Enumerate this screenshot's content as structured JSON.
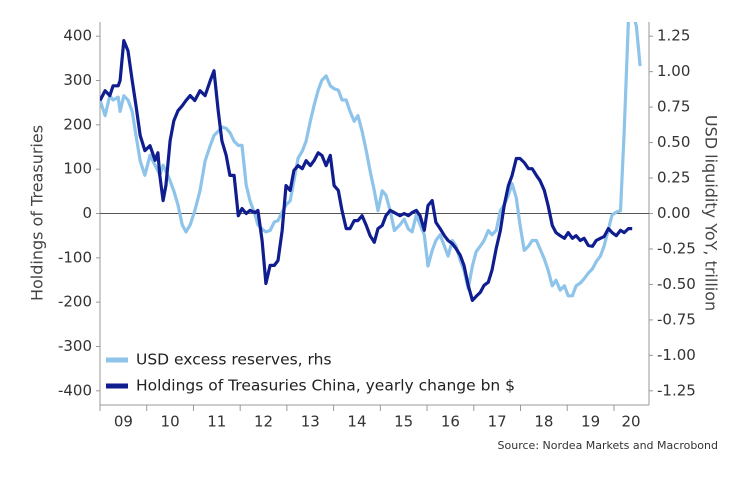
{
  "chart_data": {
    "type": "line",
    "source": "Source: Nordea Markets and Macrobond",
    "y_label": "Holdings of Treasuries",
    "y2_label": "USD liquidity YoY, trillion",
    "x": [
      9.0,
      9.11,
      9.21,
      9.28,
      9.39,
      9.43,
      9.51,
      9.6,
      9.69,
      9.77,
      9.86,
      9.96,
      10.07,
      10.18,
      10.24,
      10.28,
      10.35,
      10.41,
      10.5,
      10.58,
      10.67,
      10.76,
      10.84,
      10.93,
      11.03,
      11.14,
      11.25,
      11.36,
      11.44,
      11.53,
      11.61,
      11.7,
      11.78,
      11.87,
      11.96,
      12.04,
      12.13,
      12.21,
      12.32,
      12.38,
      12.47,
      12.55,
      12.64,
      12.73,
      12.81,
      12.9,
      12.98,
      13.07,
      13.15,
      13.24,
      13.33,
      13.41,
      13.5,
      13.58,
      13.67,
      13.75,
      13.84,
      13.93,
      14.01,
      14.1,
      14.18,
      14.27,
      14.35,
      14.44,
      14.52,
      14.61,
      14.7,
      14.78,
      14.87,
      14.95,
      15.04,
      15.12,
      15.21,
      15.3,
      15.42,
      15.51,
      15.6,
      15.68,
      15.77,
      15.85,
      15.94,
      16.02,
      16.11,
      16.19,
      16.28,
      16.37,
      16.45,
      16.54,
      16.62,
      16.71,
      16.79,
      16.88,
      16.97,
      17.05,
      17.14,
      17.22,
      17.31,
      17.39,
      17.48,
      17.57,
      17.65,
      17.74,
      17.82,
      17.91,
      17.99,
      18.08,
      18.17,
      18.25,
      18.34,
      18.42,
      18.51,
      18.59,
      18.68,
      18.76,
      18.85,
      18.94,
      19.02,
      19.11,
      19.19,
      19.28,
      19.36,
      19.45,
      19.54,
      19.62,
      19.71,
      19.79,
      19.88,
      19.96,
      20.05,
      20.14,
      20.22,
      20.31,
      20.39,
      20.48,
      20.56
    ],
    "series": [
      {
        "name": "USD excess reserves, rhs",
        "color": "#8ec3ea",
        "axis": "y2",
        "values": [
          0.8,
          0.69,
          0.83,
          0.8,
          0.82,
          0.72,
          0.83,
          0.8,
          0.72,
          0.55,
          0.37,
          0.27,
          0.41,
          0.34,
          0.3,
          0.27,
          0.34,
          0.3,
          0.23,
          0.16,
          0.06,
          -0.08,
          -0.13,
          -0.08,
          0.02,
          0.16,
          0.37,
          0.48,
          0.55,
          0.58,
          0.61,
          0.6,
          0.57,
          0.51,
          0.48,
          0.48,
          0.2,
          0.09,
          -0.01,
          -0.08,
          -0.11,
          -0.13,
          -0.12,
          -0.06,
          -0.05,
          0.01,
          0.06,
          0.09,
          0.23,
          0.39,
          0.44,
          0.51,
          0.65,
          0.76,
          0.87,
          0.94,
          0.97,
          0.9,
          0.88,
          0.87,
          0.8,
          0.8,
          0.72,
          0.65,
          0.69,
          0.58,
          0.44,
          0.3,
          0.16,
          0.02,
          0.16,
          0.13,
          0.02,
          -0.12,
          -0.08,
          -0.04,
          -0.11,
          -0.13,
          -0.01,
          -0.08,
          -0.15,
          -0.37,
          -0.26,
          -0.19,
          -0.15,
          -0.23,
          -0.3,
          -0.19,
          -0.23,
          -0.33,
          -0.4,
          -0.53,
          -0.37,
          -0.27,
          -0.23,
          -0.19,
          -0.12,
          -0.15,
          -0.12,
          0.02,
          0.06,
          0.13,
          0.21,
          0.11,
          -0.08,
          -0.26,
          -0.23,
          -0.19,
          -0.19,
          -0.25,
          -0.32,
          -0.4,
          -0.51,
          -0.47,
          -0.54,
          -0.51,
          -0.58,
          -0.58,
          -0.51,
          -0.49,
          -0.46,
          -0.42,
          -0.39,
          -0.34,
          -0.3,
          -0.23,
          -0.11,
          -0.01,
          0.01,
          0.02,
          0.58,
          1.36,
          1.43,
          1.32,
          1.04
        ]
      },
      {
        "name": "Holdings of Treasuries China, yearly change bn $",
        "color": "#0f1d8f",
        "values": [
          255,
          277,
          266,
          288,
          288,
          300,
          390,
          367,
          300,
          243,
          176,
          142,
          153,
          120,
          137,
          86,
          29,
          63,
          164,
          209,
          232,
          243,
          255,
          266,
          255,
          277,
          266,
          300,
          322,
          232,
          164,
          131,
          86,
          86,
          -5,
          11,
          0,
          7,
          2,
          7,
          -61,
          -158,
          -117,
          -117,
          -106,
          -38,
          63,
          52,
          97,
          108,
          101,
          119,
          108,
          119,
          137,
          131,
          108,
          131,
          63,
          52,
          7,
          -34,
          -34,
          -16,
          -16,
          -5,
          -27,
          -50,
          -65,
          -34,
          -27,
          -5,
          7,
          2,
          -5,
          0,
          -5,
          2,
          7,
          -5,
          -38,
          18,
          29,
          -20,
          -34,
          -50,
          -61,
          -68,
          -79,
          -94,
          -117,
          -162,
          -196,
          -187,
          -178,
          -162,
          -155,
          -128,
          -79,
          -38,
          18,
          63,
          86,
          124,
          124,
          115,
          101,
          101,
          86,
          74,
          52,
          18,
          -27,
          -43,
          -50,
          -56,
          -43,
          -56,
          -50,
          -61,
          -56,
          -72,
          -74,
          -61,
          -56,
          -52,
          -34,
          -43,
          -50,
          -38,
          -43,
          -34,
          -34,
          null,
          null
        ]
      }
    ],
    "xlim": [
      9,
      20.75
    ],
    "xticks": [
      {
        "value": 9,
        "label": "09"
      },
      10,
      11,
      12,
      13,
      14,
      15,
      16,
      17,
      18,
      19,
      20
    ],
    "ylim": [
      -432,
      432
    ],
    "yticks": [
      -400,
      -300,
      -200,
      -100,
      0,
      100,
      200,
      300,
      400
    ],
    "y2lim": [
      -1.35,
      1.35
    ],
    "y2ticks": [
      -1.25,
      {
        "value": -1.0,
        "label": "-1.00"
      },
      -0.75,
      {
        "value": -0.5,
        "label": "-0.50"
      },
      -0.25,
      {
        "value": 0,
        "label": "0.00"
      },
      0.25,
      {
        "value": 0.5,
        "label": "0.50"
      },
      0.75,
      {
        "value": 1.0,
        "label": "1.00"
      },
      1.25
    ],
    "legend": "bottom-left"
  }
}
